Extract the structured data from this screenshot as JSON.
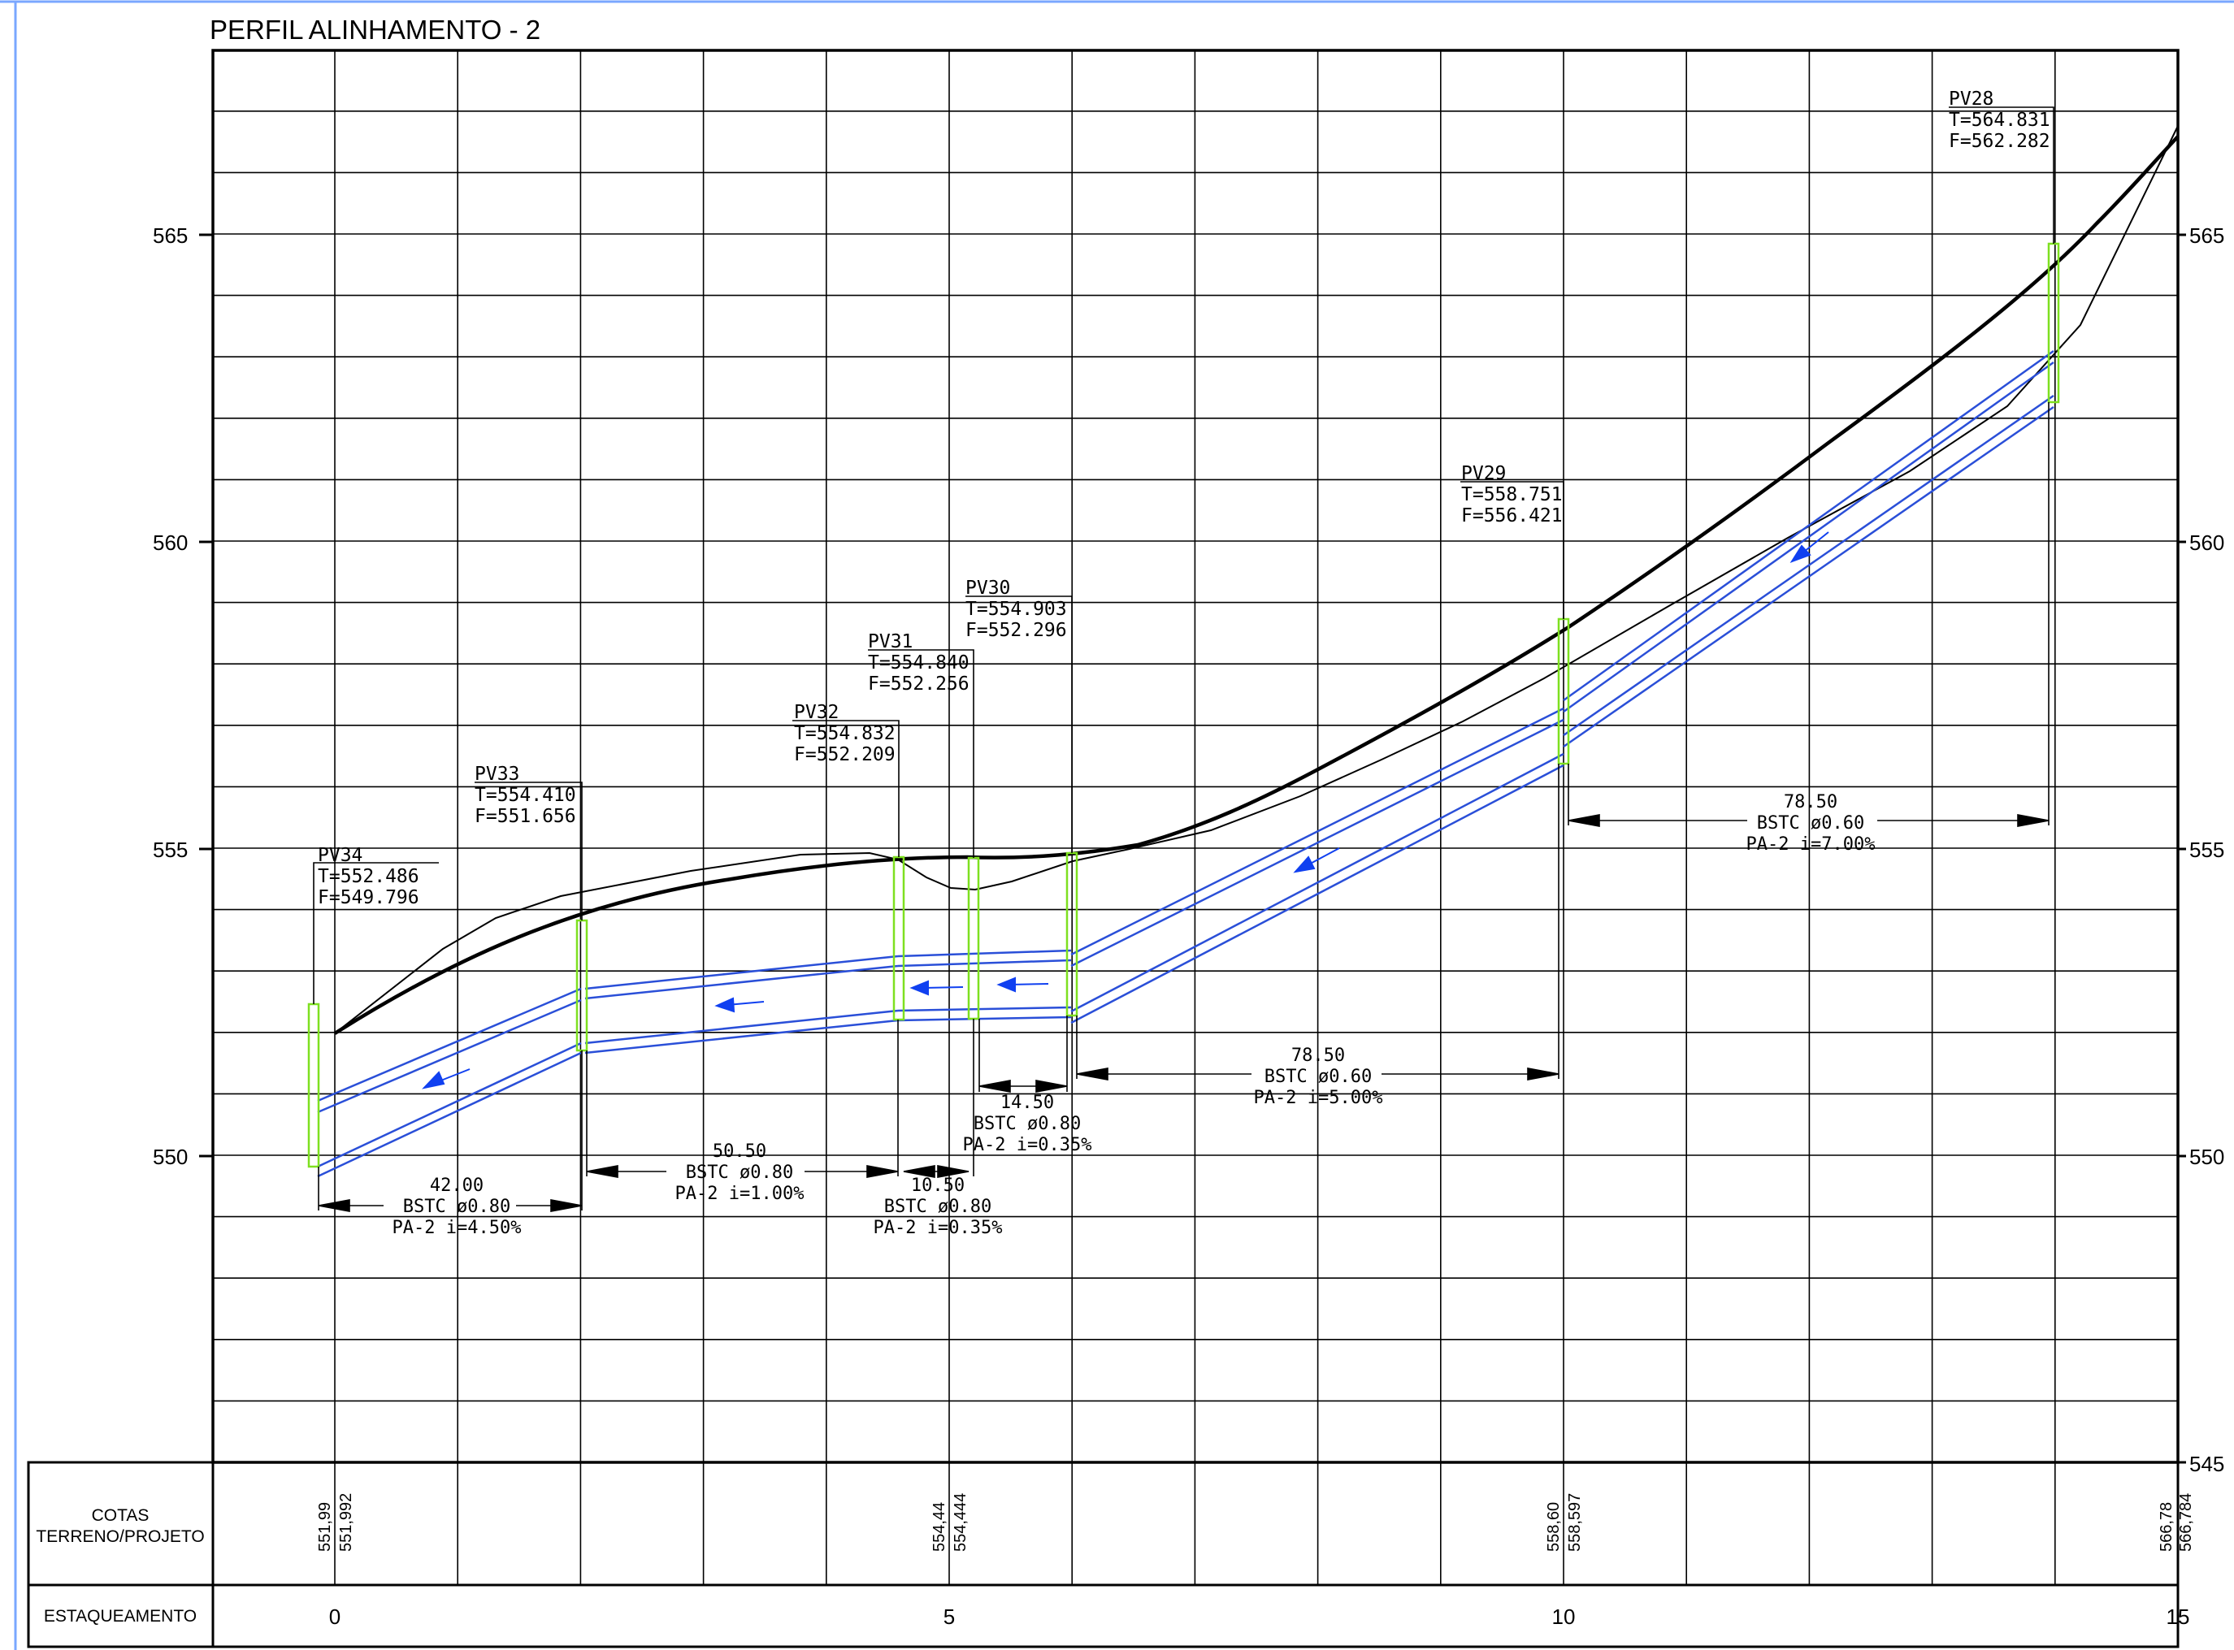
{
  "title": "PERFIL ALINHAMENTO - 2",
  "colors": {
    "grid": "#000000",
    "pipe": "#2a4fd8",
    "arrow": "#1040f0",
    "manhole": "#7ee020",
    "terrain": "#000000",
    "frame_border": "#7aa7ff"
  },
  "y_axis": {
    "ticks": [
      "545",
      "550",
      "555",
      "560",
      "565"
    ]
  },
  "rows": {
    "cotas_label_1": "COTAS",
    "cotas_label_2": "TERRENO/PROJETO",
    "estaqueamento_label": "ESTAQUEAMENTO"
  },
  "stations": [
    "0",
    "5",
    "10",
    "15"
  ],
  "elevations": [
    {
      "station": 0,
      "terreno": "551,99",
      "projeto": "551,992"
    },
    {
      "station": 5,
      "terreno": "554,44",
      "projeto": "554,444"
    },
    {
      "station": 10,
      "terreno": "558,60",
      "projeto": "558,597"
    },
    {
      "station": 15,
      "terreno": "566,78",
      "projeto": "566,784"
    }
  ],
  "manholes": [
    {
      "name": "PV34",
      "t": "T=552.486",
      "f": "F=549.796"
    },
    {
      "name": "PV33",
      "t": "T=554.410",
      "f": "F=551.656"
    },
    {
      "name": "PV32",
      "t": "T=554.832",
      "f": "F=552.209"
    },
    {
      "name": "PV31",
      "t": "T=554.840",
      "f": "F=552.256"
    },
    {
      "name": "PV30",
      "t": "T=554.903",
      "f": "F=552.296"
    },
    {
      "name": "PV29",
      "t": "T=558.751",
      "f": "F=556.421"
    },
    {
      "name": "PV28",
      "t": "T=564.831",
      "f": "F=562.282"
    }
  ],
  "segments": [
    {
      "length": "42.00",
      "spec": "BSTC  ø0.80",
      "slope": "PA-2  i=4.50%"
    },
    {
      "length": "50.50",
      "spec": "BSTC  ø0.80",
      "slope": "PA-2  i=1.00%"
    },
    {
      "length": "10.50",
      "spec": "BSTC  ø0.80",
      "slope": "PA-2  i=0.35%"
    },
    {
      "length": "14.50",
      "spec": "BSTC  ø0.80",
      "slope": "PA-2  i=0.35%"
    },
    {
      "length": "78.50",
      "spec": "BSTC  ø0.60",
      "slope": "PA-2  i=5.00%"
    },
    {
      "length": "78.50",
      "spec": "BSTC  ø0.60",
      "slope": "PA-2  i=7.00%"
    }
  ]
}
